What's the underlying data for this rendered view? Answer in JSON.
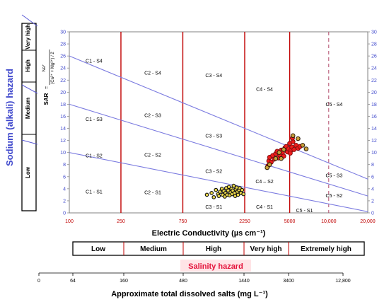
{
  "chart_data": {
    "type": "scatter",
    "title": "",
    "x_axis": {
      "label": "Electric Conductivity (µs cm⁻¹)",
      "scale": "log",
      "range": [
        100,
        20000
      ],
      "ticks": [
        "100",
        "250",
        "750",
        "2250",
        "5000",
        "10,000",
        "20,000"
      ],
      "tick_values": [
        100,
        250,
        750,
        2250,
        5000,
        10000,
        20000
      ]
    },
    "y_axis": {
      "label": "SAR",
      "formula_top": "Na⁺",
      "formula_bottom": "(Ca²⁺ + Mg²⁺) / 2",
      "range": [
        0,
        30
      ],
      "ticks": [
        "0",
        "2",
        "4",
        "6",
        "8",
        "10",
        "12",
        "14",
        "16",
        "18",
        "20",
        "22",
        "24",
        "26",
        "28",
        "30"
      ]
    },
    "sodium_hazard": {
      "label": "Sodium (alkali) hazard",
      "levels": [
        "Low",
        "Medium",
        "High",
        "Very high"
      ]
    },
    "salinity_hazard": {
      "label": "Salinity hazard",
      "levels": [
        "Low",
        "Medium",
        "High",
        "Very high",
        "Extremely high"
      ]
    },
    "tds_axis": {
      "label": "Approximate total dissolved salts (mg L⁻¹)",
      "ticks": [
        "0",
        "64",
        "160",
        "480",
        "1440",
        "3400",
        "12,800"
      ]
    },
    "zones": [
      {
        "label": "C1 - S4",
        "ec": 155,
        "sar": 25.2
      },
      {
        "label": "C1 - S3",
        "ec": 155,
        "sar": 15.5
      },
      {
        "label": "C1 - S2",
        "ec": 155,
        "sar": 9.5
      },
      {
        "label": "C1 - S1",
        "ec": 155,
        "sar": 3.5
      },
      {
        "label": "C2 - S4",
        "ec": 440,
        "sar": 23.2
      },
      {
        "label": "C2 - S3",
        "ec": 440,
        "sar": 16.2
      },
      {
        "label": "C2 - S2",
        "ec": 440,
        "sar": 9.6
      },
      {
        "label": "C2 - S1",
        "ec": 440,
        "sar": 3.4
      },
      {
        "label": "C3 - S4",
        "ec": 1300,
        "sar": 22.8
      },
      {
        "label": "C3 - S3",
        "ec": 1300,
        "sar": 12.8
      },
      {
        "label": "C3 - S2",
        "ec": 1300,
        "sar": 6.9
      },
      {
        "label": "C3 - S1",
        "ec": 1300,
        "sar": 1.0
      },
      {
        "label": "C4 - S4",
        "ec": 3200,
        "sar": 20.5
      },
      {
        "label": "C4 – S2",
        "ec": 3200,
        "sar": 5.2
      },
      {
        "label": "C4 - S1",
        "ec": 3200,
        "sar": 1.0
      },
      {
        "label": "C5 - S4",
        "ec": 11000,
        "sar": 18.0
      },
      {
        "label": "C5 - S3",
        "ec": 11000,
        "sar": 6.2
      },
      {
        "label": "C5 - S2",
        "ec": 11000,
        "sar": 2.9
      },
      {
        "label": "C5 - S1",
        "ec": 6500,
        "sar": 0.4
      }
    ],
    "boundary_lines": [
      {
        "name": "S1-S2",
        "points": [
          [
            100,
            10
          ],
          [
            20000,
            0.2
          ]
        ]
      },
      {
        "name": "S2-S3",
        "points": [
          [
            100,
            18
          ],
          [
            20000,
            2.8
          ]
        ]
      },
      {
        "name": "S3-S4",
        "points": [
          [
            100,
            26
          ],
          [
            20000,
            5.6
          ]
        ]
      }
    ],
    "series": [
      {
        "marker": "black-yellow",
        "points": [
          [
            1150,
            3.0
          ],
          [
            1250,
            3.3
          ],
          [
            1300,
            2.6
          ],
          [
            1350,
            3.8
          ],
          [
            1400,
            3.1
          ],
          [
            1420,
            2.8
          ],
          [
            1450,
            3.5
          ],
          [
            1500,
            4.0
          ],
          [
            1520,
            3.0
          ],
          [
            1550,
            3.6
          ],
          [
            1580,
            2.7
          ],
          [
            1600,
            3.3
          ],
          [
            1620,
            4.1
          ],
          [
            1650,
            3.0
          ],
          [
            1680,
            3.7
          ],
          [
            1700,
            4.3
          ],
          [
            1720,
            2.9
          ],
          [
            1750,
            3.4
          ],
          [
            1780,
            4.0
          ],
          [
            1800,
            3.1
          ],
          [
            1820,
            3.7
          ],
          [
            1850,
            4.5
          ],
          [
            1880,
            3.3
          ],
          [
            1900,
            2.8
          ],
          [
            1920,
            3.9
          ],
          [
            1950,
            4.2
          ],
          [
            1980,
            3.5
          ],
          [
            2000,
            3.0
          ],
          [
            2030,
            3.8
          ],
          [
            2060,
            4.1
          ],
          [
            2100,
            3.3
          ],
          [
            2150,
            3.8
          ],
          [
            2200,
            3.1
          ]
        ]
      },
      {
        "marker": "red",
        "points": [
          [
            3400,
            7.8
          ],
          [
            3450,
            8.6
          ],
          [
            3500,
            9.2
          ],
          [
            3600,
            8.4
          ],
          [
            3700,
            9.5
          ],
          [
            3800,
            8.9
          ],
          [
            3900,
            9.8
          ],
          [
            4000,
            10.2
          ],
          [
            4100,
            9.1
          ],
          [
            4200,
            9.6
          ],
          [
            4300,
            10.4
          ],
          [
            4400,
            10.0
          ],
          [
            4500,
            9.4
          ],
          [
            4600,
            10.8
          ],
          [
            4700,
            11.0
          ],
          [
            4800,
            10.1
          ],
          [
            4900,
            10.6
          ],
          [
            5000,
            11.5
          ],
          [
            5100,
            10.3
          ],
          [
            5200,
            10.9
          ],
          [
            5300,
            11.8
          ],
          [
            5400,
            10.5
          ],
          [
            5600,
            11.2
          ],
          [
            5800,
            10.7
          ],
          [
            6000,
            11.0
          ],
          [
            5250,
            12.4
          ],
          [
            5050,
            9.9
          ]
        ]
      },
      {
        "marker": "dark-yellow",
        "points": [
          [
            3350,
            7.5
          ],
          [
            3500,
            8.0
          ],
          [
            3900,
            9.0
          ],
          [
            4500,
            10.5
          ],
          [
            5300,
            12.8
          ],
          [
            5800,
            12.3
          ],
          [
            6300,
            11.2
          ],
          [
            6700,
            10.6
          ],
          [
            4300,
            9.0
          ],
          [
            4150,
            10.0
          ]
        ]
      }
    ]
  }
}
